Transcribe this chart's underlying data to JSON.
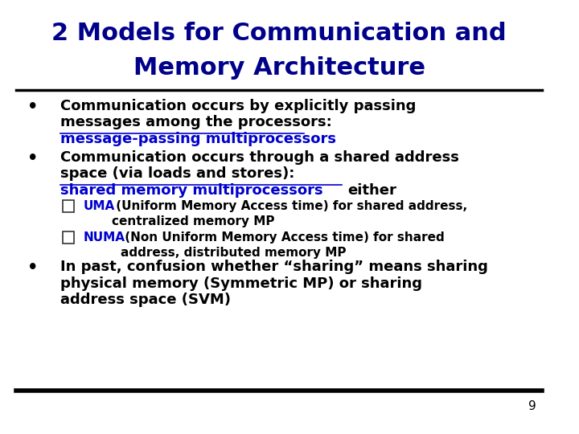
{
  "title_line1": "2 Models for Communication and",
  "title_line2": "Memory Architecture",
  "title_color": "#00008B",
  "title_fontsize": 22,
  "body_fontsize": 13,
  "sub_fontsize": 11,
  "background_color": "#FFFFFF",
  "text_color": "#000000",
  "link_color": "#0000CD",
  "page_number": "9",
  "bullet1_line1": "Communication occurs by explicitly passing",
  "bullet1_line2": "messages among the processors:",
  "bullet1_link": "message-passing multiprocessors",
  "bullet2_line1": "Communication occurs through a shared address",
  "bullet2_line2": "space (via loads and stores):",
  "bullet2_link": "shared memory multiprocessors",
  "bullet2_link_suffix": "either",
  "sub1_prefix": "UMA",
  "sub1_rest": " (Uniform Memory Access time) for shared address,",
  "sub1_line2": "centralized memory MP",
  "sub2_prefix": "NUMA",
  "sub2_rest": " (Non Uniform Memory Access time) for shared",
  "sub2_line2": "address, distributed memory MP",
  "bullet3_line1": "In past, confusion whether “sharing” means sharing",
  "bullet3_line2": "physical memory (Symmetric MP) or sharing",
  "bullet3_line3": "address space (SVM)"
}
